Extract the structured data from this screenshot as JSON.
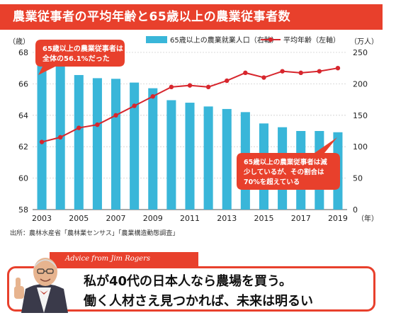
{
  "chart_data": {
    "type": "bar+line",
    "title": "農業従事者の平均年齢と65歳以上の農業従事者数",
    "years": [
      2003,
      2004,
      2005,
      2006,
      2007,
      2008,
      2009,
      2010,
      2011,
      2012,
      2013,
      2014,
      2015,
      2016,
      2017,
      2018,
      2019
    ],
    "x_tick_labels": [
      "2003",
      "2005",
      "2007",
      "2009",
      "2011",
      "2013",
      "2015",
      "2017",
      "2019"
    ],
    "x_unit": "（年）",
    "left_axis": {
      "unit": "（歳）",
      "min": 58,
      "max": 68,
      "ticks": [
        "58",
        "60",
        "62",
        "64",
        "66",
        "68"
      ]
    },
    "right_axis": {
      "unit": "（万人）",
      "min": 0,
      "max": 250,
      "ticks": [
        "0",
        "50",
        "100",
        "150",
        "200",
        "250"
      ]
    },
    "series": [
      {
        "name": "65歳以上の農業就業人口（右軸）",
        "type": "bar",
        "axis": "right",
        "color": "#39b6d9",
        "values": [
          234,
          232,
          214,
          209,
          208,
          202,
          193,
          174,
          170,
          164,
          160,
          155,
          137,
          131,
          125,
          125,
          123
        ]
      },
      {
        "name": "平均年齢（左軸）",
        "type": "line",
        "axis": "left",
        "color": "#d7262d",
        "values": [
          62.3,
          62.6,
          63.2,
          63.4,
          64.0,
          64.6,
          65.2,
          65.8,
          65.9,
          65.8,
          66.2,
          66.7,
          66.4,
          66.8,
          66.7,
          66.8,
          67.0
        ]
      }
    ],
    "grid": true,
    "legend_position": "top-right"
  },
  "annotations": {
    "top": "65歳以上の農業従事者は\n全体の56.1%だった",
    "bottom": "65歳以上の農業従事者は減\n少しているが、その割合は\n70%を超えている"
  },
  "source": "出所：農林水産省「農林業センサス」「農業構造動態調査」",
  "advice": {
    "tag": "Advice from Jim Rogers",
    "line1": "私が40代の日本人なら農場を買う。",
    "line2": "働く人材さえ見つかれば、未来は明るい"
  },
  "colors": {
    "accent": "#e8402c",
    "bar": "#39b6d9",
    "line": "#d7262d"
  }
}
